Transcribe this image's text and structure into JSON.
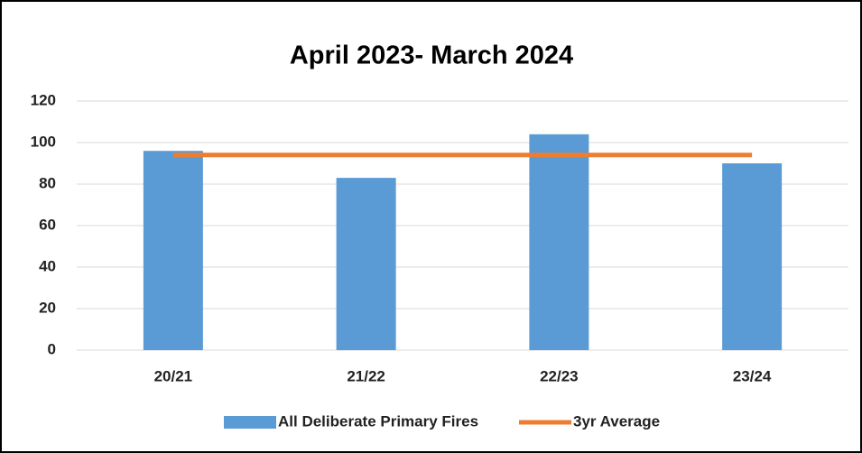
{
  "chart_data": {
    "type": "bar",
    "title": "April 2023- March 2024",
    "categories": [
      "20/21",
      "21/22",
      "22/23",
      "23/24"
    ],
    "series": [
      {
        "name": "All Deliberate Primary Fires",
        "color": "#5b9bd5",
        "type": "bar",
        "values": [
          96,
          83,
          104,
          90
        ]
      },
      {
        "name": "3yr Average",
        "color": "#ed7d31",
        "type": "line",
        "values": [
          94,
          94,
          94,
          94
        ]
      }
    ],
    "ylim": [
      0,
      120
    ],
    "yticks": [
      0,
      20,
      40,
      60,
      80,
      100,
      120
    ],
    "grid": true,
    "legend": "bottom"
  }
}
